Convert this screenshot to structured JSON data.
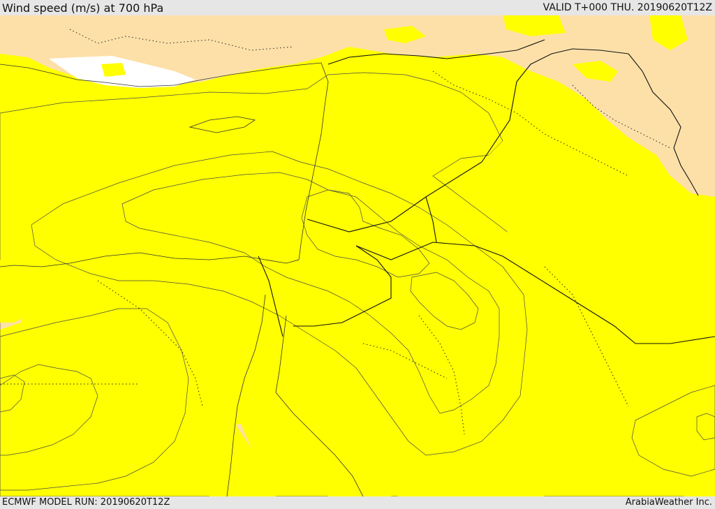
{
  "header": {
    "title": "Wind speed (m/s) at 700 hPa",
    "valid": "VALID T+000 THU. 20190620T12Z"
  },
  "footer": {
    "model_run": "ECMWF MODEL RUN: 20190620T12Z",
    "credit": "ArabiaWeather Inc."
  },
  "colors": {
    "low": "#fde0a8",
    "level1": "#ffff00",
    "level2": "#ffe000",
    "level3": "#ffc400",
    "level4": "#ffa200",
    "level5": "#ff8000",
    "nodata": "#ffffff"
  }
}
